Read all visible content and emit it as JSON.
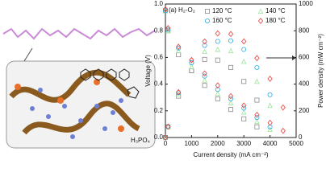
{
  "schematic": {
    "label": "H₃PO₄"
  },
  "chart_data": {
    "type": "scatter",
    "title": "(a) H₂-O₂",
    "xlabel": "Current density (mA cm⁻²)",
    "ylabel": "Voltage (V)",
    "y2label": "Power density (mW cm⁻²)",
    "xlim": [
      0,
      5000
    ],
    "xticks": [
      0,
      1000,
      2000,
      3000,
      4000,
      5000
    ],
    "ylim": [
      0,
      1.0
    ],
    "yticks": [
      {
        "value": 0,
        "label": "0.0"
      },
      0.2,
      0.4,
      0.6,
      0.8,
      {
        "value": 1.0,
        "label": "1.0"
      }
    ],
    "y2lim": [
      0,
      1000
    ],
    "y2ticks": [
      0,
      200,
      400,
      600,
      800,
      1000
    ],
    "series": [
      {
        "name": "120 °C",
        "color": "#8c8c8c",
        "marker": "square",
        "x": [
          0,
          100,
          500,
          1000,
          1500,
          2000,
          2500,
          3000,
          3500
        ],
        "values": [
          0.95,
          0.8,
          0.62,
          0.5,
          0.39,
          0.29,
          0.21,
          0.14,
          0.08
        ]
      },
      {
        "name": "140 °C",
        "color": "#9be39b",
        "marker": "triangle",
        "x": [
          0,
          100,
          500,
          1000,
          1500,
          2000,
          2500,
          3000,
          3500,
          4000
        ],
        "values": [
          0.95,
          0.8,
          0.65,
          0.53,
          0.43,
          0.33,
          0.26,
          0.19,
          0.12,
          0.06
        ]
      },
      {
        "name": "160 °C",
        "color": "#29a9e0",
        "marker": "circle",
        "x": [
          0,
          100,
          500,
          1000,
          1500,
          2000,
          2500,
          3000,
          3500,
          4000
        ],
        "values": [
          0.95,
          0.81,
          0.67,
          0.56,
          0.46,
          0.36,
          0.29,
          0.22,
          0.15,
          0.08
        ]
      },
      {
        "name": "180 °C",
        "color": "#e8413c",
        "marker": "diamond",
        "x": [
          0,
          100,
          500,
          1000,
          1500,
          2000,
          2500,
          3000,
          3500,
          4000,
          4500
        ],
        "values": [
          0.96,
          0.82,
          0.68,
          0.58,
          0.48,
          0.39,
          0.31,
          0.24,
          0.17,
          0.11,
          0.05
        ]
      },
      {
        "axis": "y2",
        "color": "#8c8c8c",
        "marker": "square",
        "x": [
          0,
          100,
          500,
          1000,
          1500,
          2000,
          2500,
          3000,
          3500
        ],
        "values": [
          0,
          80,
          310,
          500,
          585,
          580,
          525,
          420,
          280
        ]
      },
      {
        "axis": "y2",
        "color": "#9be39b",
        "marker": "triangle",
        "x": [
          0,
          100,
          500,
          1000,
          1500,
          2000,
          2500,
          3000,
          3500,
          4000
        ],
        "values": [
          0,
          80,
          325,
          530,
          645,
          660,
          650,
          570,
          420,
          240
        ]
      },
      {
        "axis": "y2",
        "color": "#29a9e0",
        "marker": "circle",
        "x": [
          0,
          100,
          500,
          1000,
          1500,
          2000,
          2500,
          3000,
          3500,
          4000
        ],
        "values": [
          0,
          81,
          335,
          560,
          690,
          720,
          725,
          660,
          525,
          320
        ]
      },
      {
        "axis": "y2",
        "color": "#e8413c",
        "marker": "diamond",
        "x": [
          0,
          100,
          500,
          1000,
          1500,
          2000,
          2500,
          3000,
          3500,
          4000,
          4500
        ],
        "values": [
          0,
          82,
          340,
          580,
          720,
          780,
          775,
          720,
          595,
          440,
          225
        ]
      }
    ]
  }
}
